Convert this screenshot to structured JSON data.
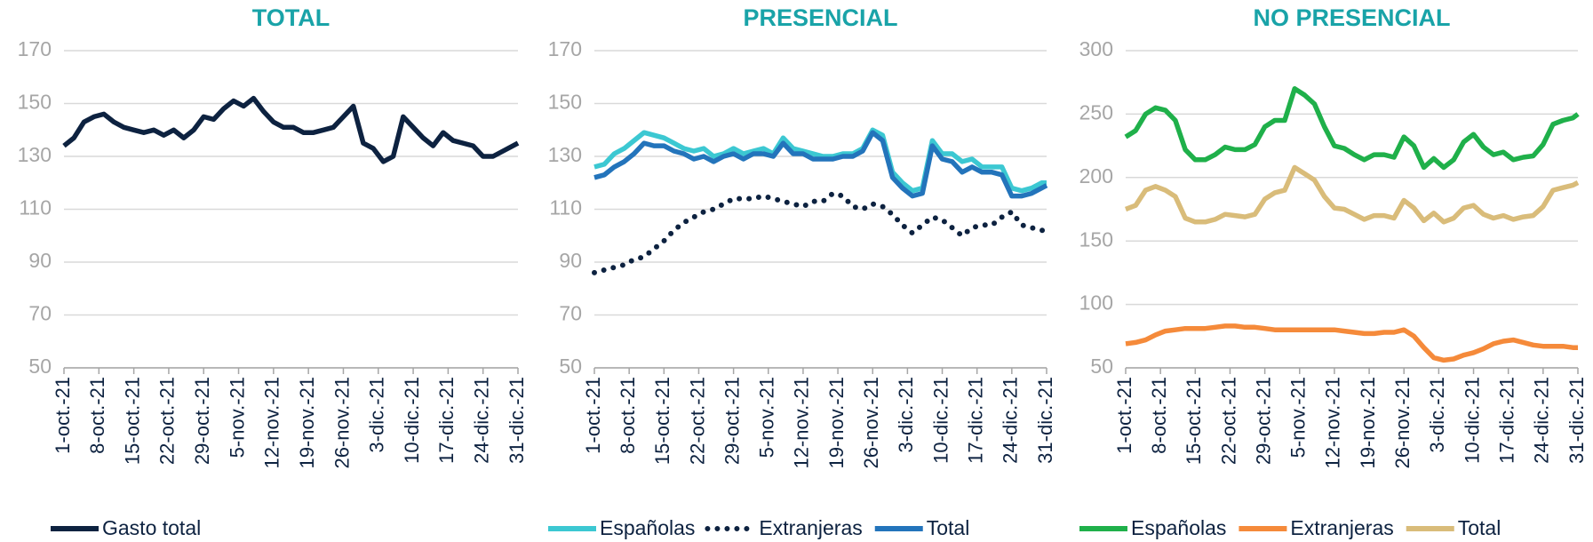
{
  "chart_data": [
    {
      "type": "line",
      "title": "TOTAL",
      "legend": "bottom",
      "grid": true,
      "x": [
        0,
        2,
        4,
        6,
        8,
        10,
        12,
        14,
        16,
        18,
        20,
        22,
        24,
        26,
        28,
        30,
        32,
        34,
        36,
        38,
        40,
        42,
        44,
        46,
        48,
        50,
        52,
        54,
        56,
        58,
        60,
        62,
        64,
        66,
        68,
        70,
        72,
        74,
        76,
        78,
        80,
        82,
        84,
        86,
        88,
        90,
        91
      ],
      "xlim": [
        0,
        91
      ],
      "xticks": [
        {
          "value": 0,
          "label": "1-oct.-21"
        },
        {
          "value": 7,
          "label": "8-oct.-21"
        },
        {
          "value": 14,
          "label": "15-oct.-21"
        },
        {
          "value": 21,
          "label": "22-oct.-21"
        },
        {
          "value": 28,
          "label": "29-oct.-21"
        },
        {
          "value": 35,
          "label": "5-nov.-21"
        },
        {
          "value": 42,
          "label": "12-nov.-21"
        },
        {
          "value": 49,
          "label": "19-nov.-21"
        },
        {
          "value": 56,
          "label": "26-nov.-21"
        },
        {
          "value": 63,
          "label": "3-dic.-21"
        },
        {
          "value": 70,
          "label": "10-dic.-21"
        },
        {
          "value": 77,
          "label": "17-dic.-21"
        },
        {
          "value": 84,
          "label": "24-dic.-21"
        },
        {
          "value": 91,
          "label": "31-dic.-21"
        }
      ],
      "ylim": [
        50,
        170
      ],
      "yticks": [
        50,
        70,
        90,
        110,
        130,
        150,
        170
      ],
      "series": [
        {
          "name": "Gasto total",
          "color": "#0d2240",
          "style": "solid",
          "values": [
            134,
            137,
            143,
            145,
            146,
            143,
            141,
            140,
            139,
            140,
            138,
            140,
            137,
            140,
            145,
            144,
            148,
            151,
            149,
            152,
            147,
            143,
            141,
            141,
            139,
            139,
            140,
            141,
            145,
            149,
            135,
            133,
            128,
            130,
            145,
            141,
            137,
            134,
            139,
            136,
            135,
            134,
            130,
            130,
            132,
            134,
            135
          ]
        }
      ]
    },
    {
      "type": "line",
      "title": "PRESENCIAL",
      "legend": "bottom",
      "grid": true,
      "x": [
        0,
        2,
        4,
        6,
        8,
        10,
        12,
        14,
        16,
        18,
        20,
        22,
        24,
        26,
        28,
        30,
        32,
        34,
        36,
        38,
        40,
        42,
        44,
        46,
        48,
        50,
        52,
        54,
        56,
        58,
        60,
        62,
        64,
        66,
        68,
        70,
        72,
        74,
        76,
        78,
        80,
        82,
        84,
        86,
        88,
        90,
        91
      ],
      "xlim": [
        0,
        91
      ],
      "xticks": [
        {
          "value": 0,
          "label": "1-oct.-21"
        },
        {
          "value": 7,
          "label": "8-oct.-21"
        },
        {
          "value": 14,
          "label": "15-oct.-21"
        },
        {
          "value": 21,
          "label": "22-oct.-21"
        },
        {
          "value": 28,
          "label": "29-oct.-21"
        },
        {
          "value": 35,
          "label": "5-nov.-21"
        },
        {
          "value": 42,
          "label": "12-nov.-21"
        },
        {
          "value": 49,
          "label": "19-nov.-21"
        },
        {
          "value": 56,
          "label": "26-nov.-21"
        },
        {
          "value": 63,
          "label": "3-dic.-21"
        },
        {
          "value": 70,
          "label": "10-dic.-21"
        },
        {
          "value": 77,
          "label": "17-dic.-21"
        },
        {
          "value": 84,
          "label": "24-dic.-21"
        },
        {
          "value": 91,
          "label": "31-dic.-21"
        }
      ],
      "ylim": [
        50,
        170
      ],
      "yticks": [
        50,
        70,
        90,
        110,
        130,
        150,
        170
      ],
      "series": [
        {
          "name": "Españolas",
          "color": "#3cc8d2",
          "style": "solid",
          "values": [
            126,
            127,
            131,
            133,
            136,
            139,
            138,
            137,
            135,
            133,
            132,
            133,
            130,
            131,
            133,
            131,
            132,
            133,
            131,
            137,
            133,
            132,
            131,
            130,
            130,
            131,
            131,
            133,
            140,
            138,
            124,
            120,
            117,
            118,
            136,
            131,
            131,
            128,
            129,
            126,
            126,
            126,
            118,
            117,
            118,
            120,
            120
          ]
        },
        {
          "name": "Extranjeras",
          "color": "#0d2240",
          "style": "dotted",
          "values": [
            86,
            87,
            88,
            89,
            91,
            92,
            95,
            98,
            102,
            105,
            107,
            109,
            110,
            112,
            114,
            114,
            114,
            115,
            114,
            113,
            112,
            111,
            113,
            113,
            116,
            115,
            111,
            110,
            112,
            111,
            108,
            104,
            101,
            104,
            107,
            106,
            103,
            100,
            103,
            104,
            104,
            107,
            109,
            104,
            103,
            102,
            102
          ]
        },
        {
          "name": "Total",
          "color": "#2374bb",
          "style": "solid",
          "values": [
            122,
            123,
            126,
            128,
            131,
            135,
            134,
            134,
            132,
            131,
            129,
            130,
            128,
            130,
            131,
            129,
            131,
            131,
            130,
            135,
            131,
            131,
            129,
            129,
            129,
            130,
            130,
            132,
            139,
            136,
            122,
            118,
            115,
            116,
            134,
            129,
            128,
            124,
            126,
            124,
            124,
            123,
            115,
            115,
            116,
            118,
            119
          ]
        }
      ]
    },
    {
      "type": "line",
      "title": "NO PRESENCIAL",
      "legend": "bottom",
      "grid": true,
      "x": [
        0,
        2,
        4,
        6,
        8,
        10,
        12,
        14,
        16,
        18,
        20,
        22,
        24,
        26,
        28,
        30,
        32,
        34,
        36,
        38,
        40,
        42,
        44,
        46,
        48,
        50,
        52,
        54,
        56,
        58,
        60,
        62,
        64,
        66,
        68,
        70,
        72,
        74,
        76,
        78,
        80,
        82,
        84,
        86,
        88,
        90,
        91
      ],
      "xlim": [
        0,
        91
      ],
      "xticks": [
        {
          "value": 0,
          "label": "1-oct.-21"
        },
        {
          "value": 7,
          "label": "8-oct.-21"
        },
        {
          "value": 14,
          "label": "15-oct.-21"
        },
        {
          "value": 21,
          "label": "22-oct.-21"
        },
        {
          "value": 28,
          "label": "29-oct.-21"
        },
        {
          "value": 35,
          "label": "5-nov.-21"
        },
        {
          "value": 42,
          "label": "12-nov.-21"
        },
        {
          "value": 49,
          "label": "19-nov.-21"
        },
        {
          "value": 56,
          "label": "26-nov.-21"
        },
        {
          "value": 63,
          "label": "3-dic.-21"
        },
        {
          "value": 70,
          "label": "10-dic.-21"
        },
        {
          "value": 77,
          "label": "17-dic.-21"
        },
        {
          "value": 84,
          "label": "24-dic.-21"
        },
        {
          "value": 91,
          "label": "31-dic.-21"
        }
      ],
      "ylim": [
        50,
        300
      ],
      "yticks": [
        50,
        100,
        150,
        200,
        250,
        300
      ],
      "series": [
        {
          "name": "Españolas",
          "color": "#1fb04a",
          "style": "solid",
          "values": [
            232,
            237,
            250,
            255,
            253,
            245,
            222,
            214,
            214,
            218,
            224,
            222,
            222,
            226,
            240,
            245,
            245,
            270,
            265,
            258,
            240,
            225,
            223,
            218,
            214,
            218,
            218,
            216,
            232,
            225,
            208,
            215,
            208,
            214,
            228,
            234,
            224,
            218,
            220,
            214,
            216,
            217,
            226,
            242,
            245,
            247,
            250
          ]
        },
        {
          "name": "Extranjeras",
          "color": "#f58a3a",
          "style": "solid",
          "values": [
            69,
            70,
            72,
            76,
            79,
            80,
            81,
            81,
            81,
            82,
            83,
            83,
            82,
            82,
            81,
            80,
            80,
            80,
            80,
            80,
            80,
            80,
            79,
            78,
            77,
            77,
            78,
            78,
            80,
            75,
            66,
            58,
            56,
            57,
            60,
            62,
            65,
            69,
            71,
            72,
            70,
            68,
            67,
            67,
            67,
            66,
            66
          ]
        },
        {
          "name": "Total",
          "color": "#d9bc7a",
          "style": "solid",
          "values": [
            175,
            178,
            190,
            193,
            190,
            185,
            168,
            165,
            165,
            167,
            171,
            170,
            169,
            171,
            183,
            188,
            190,
            208,
            203,
            198,
            185,
            176,
            175,
            171,
            167,
            170,
            170,
            168,
            182,
            176,
            166,
            172,
            165,
            168,
            176,
            178,
            171,
            168,
            170,
            167,
            169,
            170,
            177,
            190,
            192,
            194,
            196
          ]
        }
      ]
    }
  ]
}
